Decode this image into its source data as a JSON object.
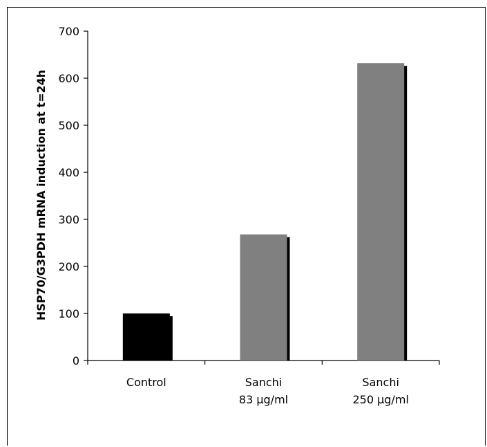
{
  "chart_data": {
    "type": "bar",
    "title": "",
    "ylabel": "HSP70/G3PDH mRNA induction at t=24h",
    "xlabel": "",
    "ylim": [
      0,
      700
    ],
    "yticks": [
      0,
      100,
      200,
      300,
      400,
      500,
      600,
      700
    ],
    "categories": [
      {
        "line1": "Control",
        "line2": ""
      },
      {
        "line1": "Sanchi",
        "line2": "83 µg/ml"
      },
      {
        "line1": "Sanchi",
        "line2": "250 µg/ml"
      }
    ],
    "values": [
      100,
      268,
      632
    ],
    "colors": [
      "#000000",
      "#808080",
      "#808080"
    ],
    "shadow_color": "#000000",
    "grid": false,
    "legend": "none"
  }
}
